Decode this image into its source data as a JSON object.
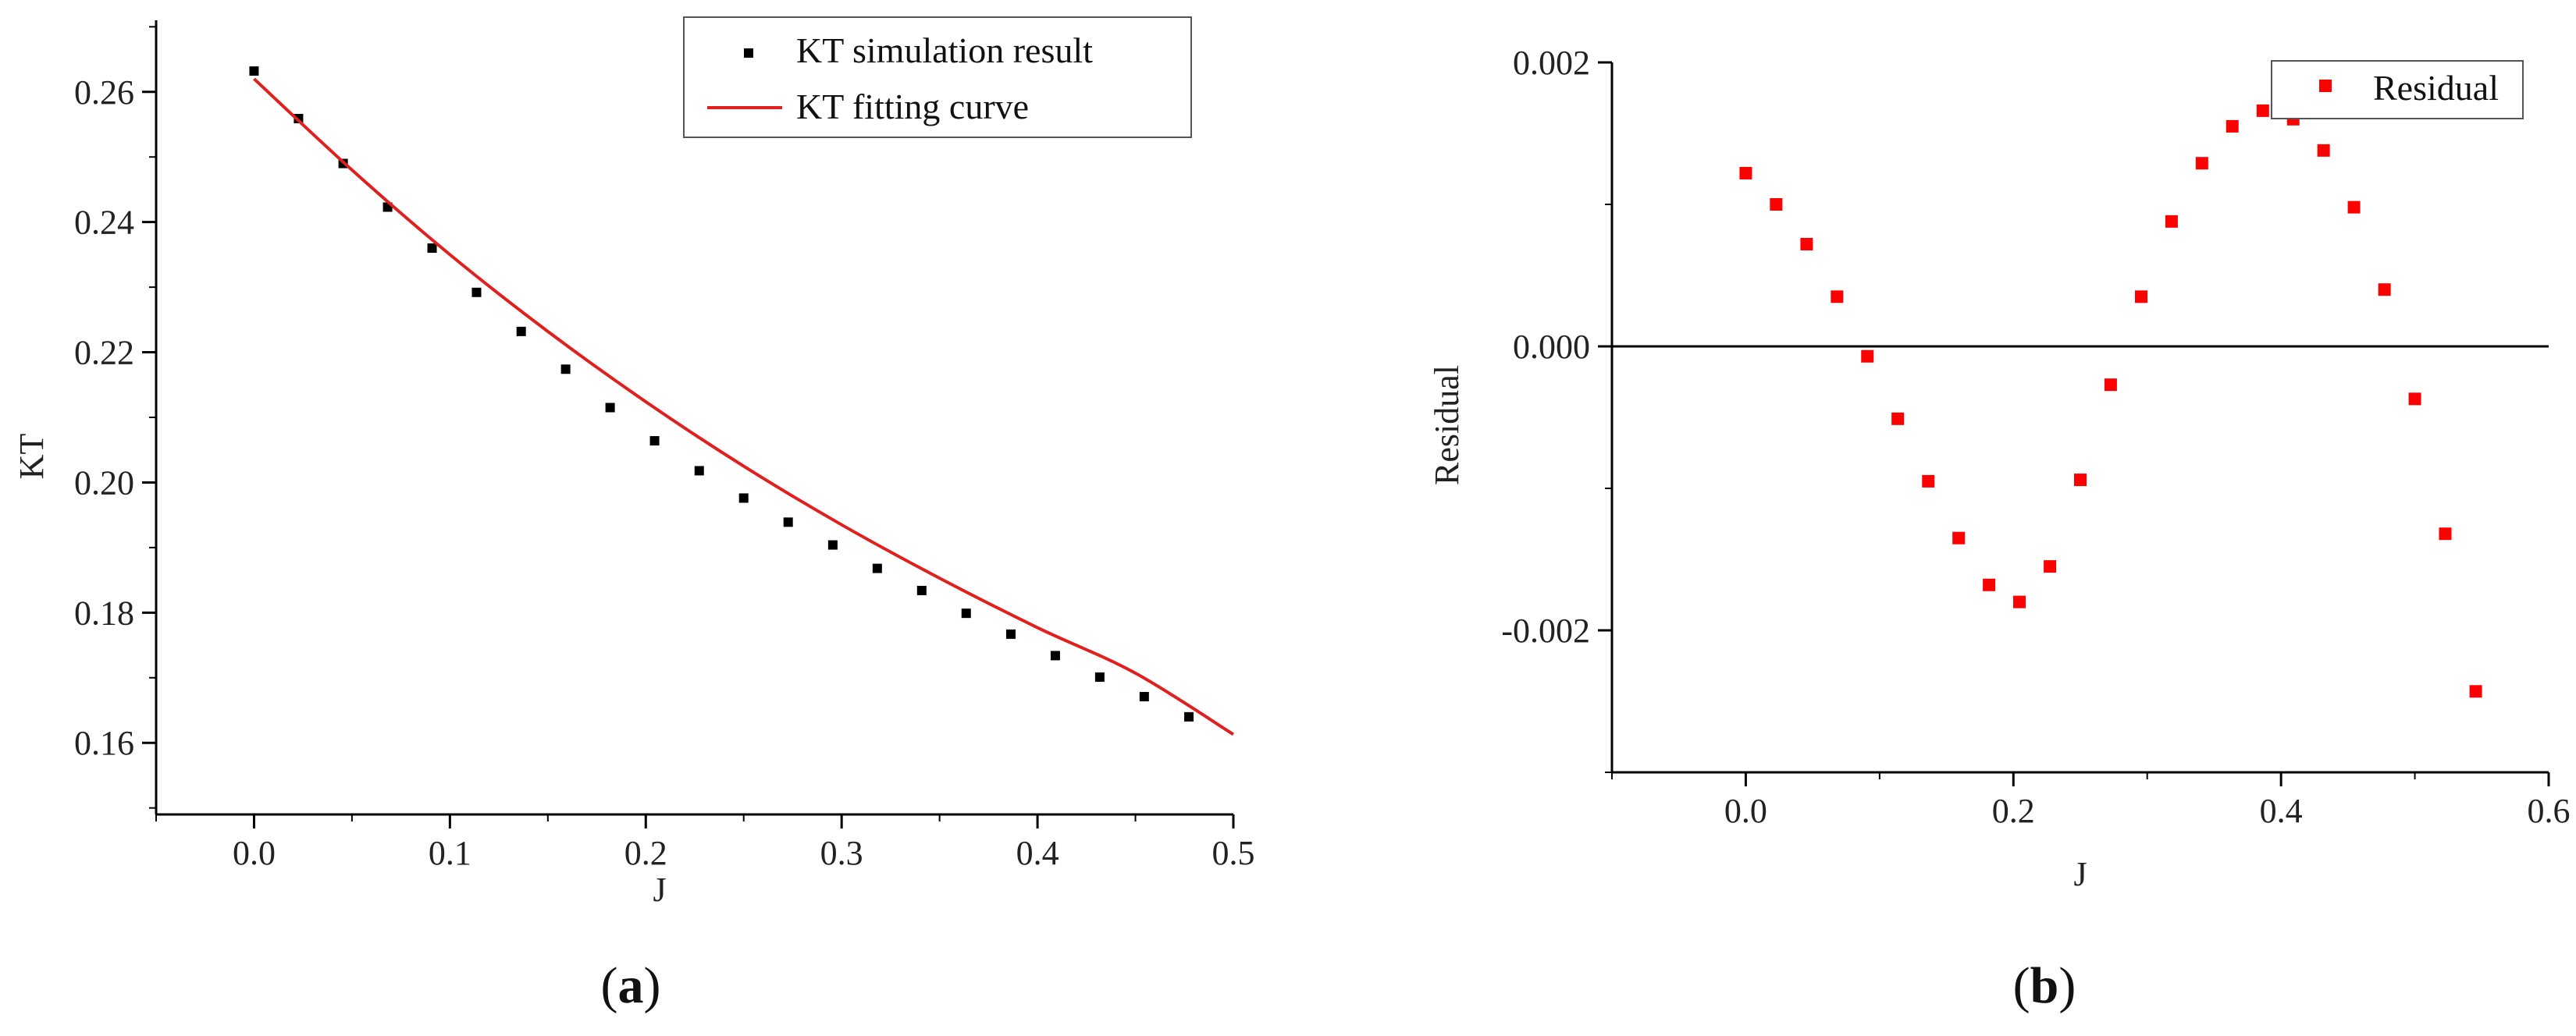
{
  "chart_data": [
    {
      "type": "scatter",
      "panel_label": "a",
      "xlabel": "J",
      "ylabel": "KT",
      "xlim": [
        -0.05,
        0.5
      ],
      "ylim": [
        0.149,
        0.271
      ],
      "xticks": [
        0.0,
        0.1,
        0.2,
        0.3,
        0.4,
        0.5
      ],
      "xtick_labels": [
        "0.0",
        "0.1",
        "0.2",
        "0.3",
        "0.4",
        "0.5"
      ],
      "yticks": [
        0.16,
        0.18,
        0.2,
        0.22,
        0.24,
        0.26
      ],
      "ytick_labels": [
        "0.16",
        "0.18",
        "0.20",
        "0.22",
        "0.24",
        "0.26"
      ],
      "legend_position": "top-right",
      "series": [
        {
          "name": "KT simulation result",
          "kind": "scatter",
          "color": "#000000",
          "x": [
            0.0,
            0.0227,
            0.0455,
            0.0682,
            0.0909,
            0.1136,
            0.1364,
            0.1591,
            0.1818,
            0.2045,
            0.2273,
            0.25,
            0.2727,
            0.2955,
            0.3182,
            0.3409,
            0.3636,
            0.3864,
            0.4091,
            0.4318,
            0.4545,
            0.4773
          ],
          "y": [
            0.2632,
            0.2559,
            0.249,
            0.2423,
            0.236,
            0.2292,
            0.2232,
            0.2174,
            0.2115,
            0.2064,
            0.2018,
            0.1976,
            0.1939,
            0.1904,
            0.1868,
            0.1834,
            0.1799,
            0.1767,
            0.1734,
            0.1701,
            0.1671,
            0.164
          ]
        },
        {
          "name": "KT fitting curve",
          "kind": "line",
          "color": "#e0201e",
          "x": [
            0.0,
            0.05,
            0.1,
            0.15,
            0.2,
            0.25,
            0.3,
            0.35,
            0.4,
            0.45,
            0.5
          ],
          "y": [
            0.262,
            0.248,
            0.235,
            0.2232,
            0.2124,
            0.2025,
            0.1935,
            0.1853,
            0.1777,
            0.1707,
            0.1613
          ]
        }
      ]
    },
    {
      "type": "scatter",
      "panel_label": "b",
      "xlabel": "J",
      "ylabel": "Residual",
      "xlim": [
        -0.1,
        0.6
      ],
      "ylim": [
        -0.003,
        0.002
      ],
      "xticks": [
        0.0,
        0.2,
        0.4,
        0.6
      ],
      "xtick_labels": [
        "0.0",
        "0.2",
        "0.4",
        "0.6"
      ],
      "yticks": [
        -0.002,
        0.0,
        0.002
      ],
      "ytick_labels": [
        "-0.002",
        "0.000",
        "0.002"
      ],
      "zero_line": true,
      "legend_position": "top-right",
      "series": [
        {
          "name": "Residual",
          "kind": "scatter",
          "color": "#ff0000",
          "x": [
            0.0,
            0.0227,
            0.0455,
            0.0682,
            0.0909,
            0.1136,
            0.1364,
            0.1591,
            0.1818,
            0.2045,
            0.2273,
            0.25,
            0.2727,
            0.2955,
            0.3182,
            0.3409,
            0.3636,
            0.3864,
            0.4091,
            0.4318,
            0.4545,
            0.4773,
            0.5,
            0.5227,
            0.5455
          ],
          "y": [
            0.00122,
            0.001,
            0.00072,
            0.00035,
            -7e-05,
            -0.00051,
            -0.00095,
            -0.00135,
            -0.00168,
            -0.0018,
            -0.00155,
            -0.00094,
            -0.00027,
            0.00035,
            0.00088,
            0.00129,
            0.00155,
            0.00166,
            0.0016,
            0.00138,
            0.00098,
            0.0004,
            -0.00037,
            -0.00132,
            -0.00243
          ]
        }
      ]
    }
  ]
}
